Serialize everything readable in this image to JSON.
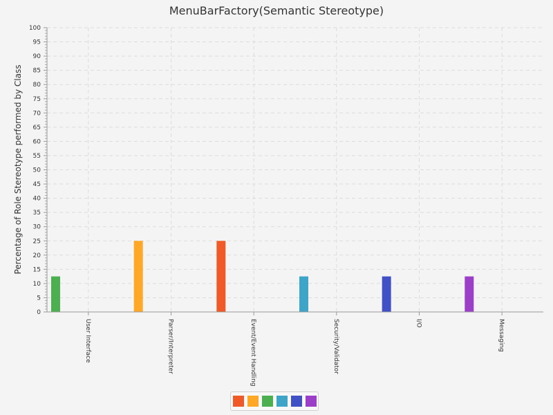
{
  "chart_data": {
    "type": "bar",
    "title": "MenuBarFactory(Semantic Stereotype)",
    "ylabel": "Percentage of Role Stereotype performed by Class",
    "xlabel": "",
    "ylim": [
      0,
      100
    ],
    "ytick_step": 5,
    "grid": true,
    "legend_position": "bottom",
    "categories": [
      "User Interface",
      "Parser/Interpreter",
      "Event/Event Handling",
      "Security/Validator",
      "I/O",
      "Messaging"
    ],
    "series": [
      {
        "color": "#4caf50",
        "values": [
          12.5,
          0,
          0,
          0,
          0,
          0
        ]
      },
      {
        "color": "#ffa726",
        "values": [
          0,
          25,
          0,
          0,
          0,
          0
        ]
      },
      {
        "color": "#f05a28",
        "values": [
          0,
          0,
          25,
          0,
          0,
          0
        ]
      },
      {
        "color": "#3ea4c8",
        "values": [
          0,
          0,
          0,
          12.5,
          0,
          0
        ]
      },
      {
        "color": "#3f51c4",
        "values": [
          0,
          0,
          0,
          0,
          12.5,
          0
        ]
      },
      {
        "color": "#9c3fc8",
        "values": [
          0,
          0,
          0,
          0,
          0,
          12.5
        ]
      }
    ],
    "legend_colors": [
      "#f05a28",
      "#ffa726",
      "#4caf50",
      "#3ea4c8",
      "#3f51c4",
      "#9c3fc8"
    ]
  }
}
